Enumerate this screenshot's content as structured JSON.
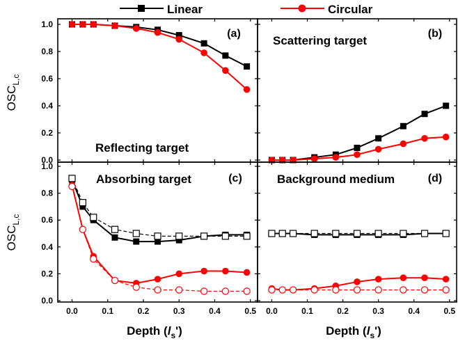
{
  "legend": {
    "linear": "Linear",
    "circular": "Circular",
    "linear_color": "#000000",
    "circular_color": "#ff0000"
  },
  "x_axis_label_prefix": "Depth (",
  "x_axis_label_l": "l",
  "x_axis_label_sub": "s",
  "x_axis_label_suffix": "')",
  "y_axis_label_main": "OSC",
  "y_axis_label_sub": "L,c",
  "chart_data": [
    {
      "type": "line",
      "panel": "(a)",
      "title": "Reflecting target",
      "x": [
        0.0,
        0.03,
        0.06,
        0.12,
        0.18,
        0.24,
        0.3,
        0.37,
        0.43,
        0.49
      ],
      "ylim": [
        0,
        1.0
      ],
      "xlim": [
        -0.04,
        0.52
      ],
      "series": [
        {
          "name": "Linear",
          "style": "solid",
          "marker": "filled-square",
          "color": "#000000",
          "values": [
            1.0,
            1.0,
            1.0,
            0.99,
            0.98,
            0.96,
            0.92,
            0.86,
            0.77,
            0.69
          ]
        },
        {
          "name": "Circular",
          "style": "solid",
          "marker": "filled-circle",
          "color": "#ff0000",
          "values": [
            1.0,
            1.0,
            1.0,
            0.99,
            0.97,
            0.94,
            0.89,
            0.79,
            0.66,
            0.52
          ]
        }
      ]
    },
    {
      "type": "line",
      "panel": "(b)",
      "title": "Scattering target",
      "x": [
        0.0,
        0.03,
        0.06,
        0.12,
        0.18,
        0.24,
        0.3,
        0.37,
        0.43,
        0.49
      ],
      "ylim": [
        0,
        1.0
      ],
      "xlim": [
        -0.04,
        0.52
      ],
      "series": [
        {
          "name": "Linear",
          "style": "solid",
          "marker": "filled-square",
          "color": "#000000",
          "values": [
            0.0,
            0.0,
            0.0,
            0.02,
            0.04,
            0.09,
            0.16,
            0.25,
            0.34,
            0.4
          ]
        },
        {
          "name": "Circular",
          "style": "solid",
          "marker": "filled-circle",
          "color": "#ff0000",
          "values": [
            0.0,
            0.0,
            0.0,
            0.01,
            0.02,
            0.04,
            0.08,
            0.12,
            0.16,
            0.17
          ]
        }
      ]
    },
    {
      "type": "line",
      "panel": "(c)",
      "title": "Absorbing target",
      "x": [
        0.0,
        0.03,
        0.06,
        0.12,
        0.18,
        0.24,
        0.3,
        0.37,
        0.43,
        0.49
      ],
      "ylim": [
        0,
        1.0
      ],
      "xlim": [
        -0.04,
        0.52
      ],
      "series": [
        {
          "name": "Linear",
          "style": "solid",
          "marker": "filled-square",
          "color": "#000000",
          "values": [
            0.9,
            0.7,
            0.6,
            0.47,
            0.44,
            0.44,
            0.45,
            0.48,
            0.49,
            0.49
          ]
        },
        {
          "name": "",
          "style": "dashed",
          "marker": "open-square",
          "color": "#000000",
          "values": [
            0.91,
            0.73,
            0.62,
            0.53,
            0.5,
            0.48,
            0.48,
            0.48,
            0.48,
            0.48
          ]
        },
        {
          "name": "Circular",
          "style": "solid",
          "marker": "filled-circle",
          "color": "#ff0000",
          "values": [
            0.86,
            0.53,
            0.33,
            0.15,
            0.13,
            0.16,
            0.2,
            0.22,
            0.22,
            0.21
          ]
        },
        {
          "name": "",
          "style": "dashed",
          "marker": "open-circle",
          "color": "#ff0000",
          "values": [
            0.85,
            0.53,
            0.31,
            0.15,
            0.1,
            0.08,
            0.08,
            0.07,
            0.07,
            0.07
          ]
        }
      ]
    },
    {
      "type": "line",
      "panel": "(d)",
      "title": "Background medium",
      "x": [
        0.0,
        0.03,
        0.06,
        0.12,
        0.18,
        0.24,
        0.3,
        0.37,
        0.43,
        0.49
      ],
      "ylim": [
        0,
        1.0
      ],
      "xlim": [
        -0.04,
        0.52
      ],
      "series": [
        {
          "name": "Linear",
          "style": "solid",
          "marker": "filled-square",
          "color": "#000000",
          "values": [
            0.5,
            0.5,
            0.5,
            0.49,
            0.49,
            0.49,
            0.49,
            0.49,
            0.5,
            0.5
          ]
        },
        {
          "name": "",
          "style": "dashed",
          "marker": "open-square",
          "color": "#000000",
          "values": [
            0.5,
            0.5,
            0.5,
            0.5,
            0.5,
            0.5,
            0.5,
            0.5,
            0.5,
            0.5
          ]
        },
        {
          "name": "Circular",
          "style": "solid",
          "marker": "filled-circle",
          "color": "#ff0000",
          "values": [
            0.09,
            0.08,
            0.08,
            0.09,
            0.11,
            0.14,
            0.16,
            0.17,
            0.17,
            0.16
          ]
        },
        {
          "name": "",
          "style": "dashed",
          "marker": "open-circle",
          "color": "#ff0000",
          "values": [
            0.08,
            0.08,
            0.08,
            0.08,
            0.08,
            0.08,
            0.08,
            0.08,
            0.08,
            0.08
          ]
        }
      ]
    }
  ],
  "axes": {
    "left_y_ticks_top": [
      "0.0",
      "0.2",
      "0.4",
      "0.6",
      "0.8",
      "1.0"
    ],
    "left_y_ticks_bottom": [
      "0.0",
      "0.2",
      "0.4",
      "0.6",
      "0.8",
      "1.0"
    ],
    "x_ticks": [
      "0.0",
      "0.1",
      "0.2",
      "0.3",
      "0.4",
      "0.5"
    ]
  }
}
